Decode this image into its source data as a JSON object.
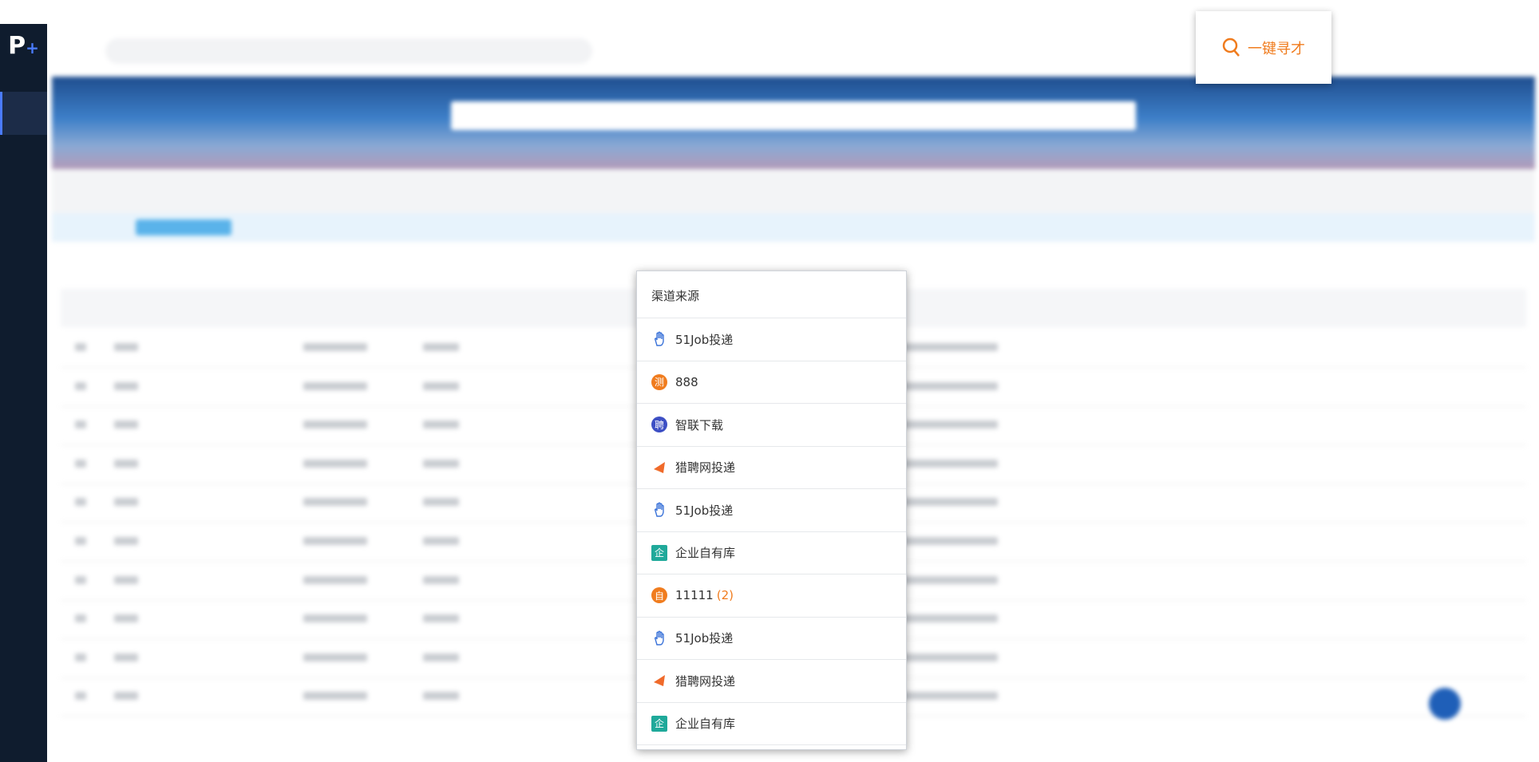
{
  "sidebar": {
    "logo": {
      "letter": "P",
      "plus": "+"
    }
  },
  "header": {
    "button": "一键寻才"
  },
  "popup": {
    "title": "渠道来源",
    "items": [
      {
        "label": "51Job投递",
        "icon": "hand",
        "color": "#3b73d9"
      },
      {
        "label": "888",
        "icon": "circle",
        "badge": "测",
        "color": "#f07c1e"
      },
      {
        "label": "智联下载",
        "icon": "circle",
        "badge": "聘",
        "color": "#3d4fc4"
      },
      {
        "label": "猎聘网投递",
        "icon": "flag",
        "color": "#f06a2a"
      },
      {
        "label": "51Job投递",
        "icon": "hand",
        "color": "#3b73d9"
      },
      {
        "label": "企业自有库",
        "icon": "square",
        "badge": "企",
        "color": "#1fa99a"
      },
      {
        "label": "11111",
        "count": "(2)",
        "icon": "circle",
        "badge": "自",
        "color": "#f07c1e"
      },
      {
        "label": "51Job投递",
        "icon": "hand",
        "color": "#3b73d9"
      },
      {
        "label": "猎聘网投递",
        "icon": "flag",
        "color": "#f06a2a"
      },
      {
        "label": "企业自有库",
        "icon": "square",
        "badge": "企",
        "color": "#1fa99a"
      }
    ]
  }
}
